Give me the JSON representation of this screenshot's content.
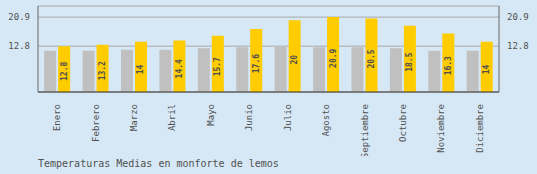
{
  "chart_data": {
    "type": "bar",
    "title": "Temperaturas Medias en monforte de lemos",
    "categories": [
      "Enero",
      "Febrero",
      "Marzo",
      "Abril",
      "Mayo",
      "Junio",
      "Julio",
      "Agosto",
      "Septiembre",
      "Octubre",
      "Noviembre",
      "Diciembre"
    ],
    "series": [
      {
        "color": "#C0C0C0",
        "values": [
          11.5,
          11.5,
          11.8,
          11.8,
          12.2,
          12.5,
          12.8,
          12.5,
          12.5,
          12.2,
          11.5,
          11.5
        ]
      },
      {
        "color": "#FFCC00",
        "values": [
          12.8,
          13.2,
          14.0,
          14.4,
          15.7,
          17.6,
          20.0,
          20.9,
          20.5,
          18.5,
          16.3,
          14.0
        ],
        "data_labels": true
      }
    ],
    "ylim": [
      0,
      24.0
    ],
    "yticks": [
      12.8,
      20.9
    ],
    "y2lim": [
      0,
      24.0
    ],
    "y2ticks": [
      12.8,
      20.9
    ],
    "grid": true
  }
}
